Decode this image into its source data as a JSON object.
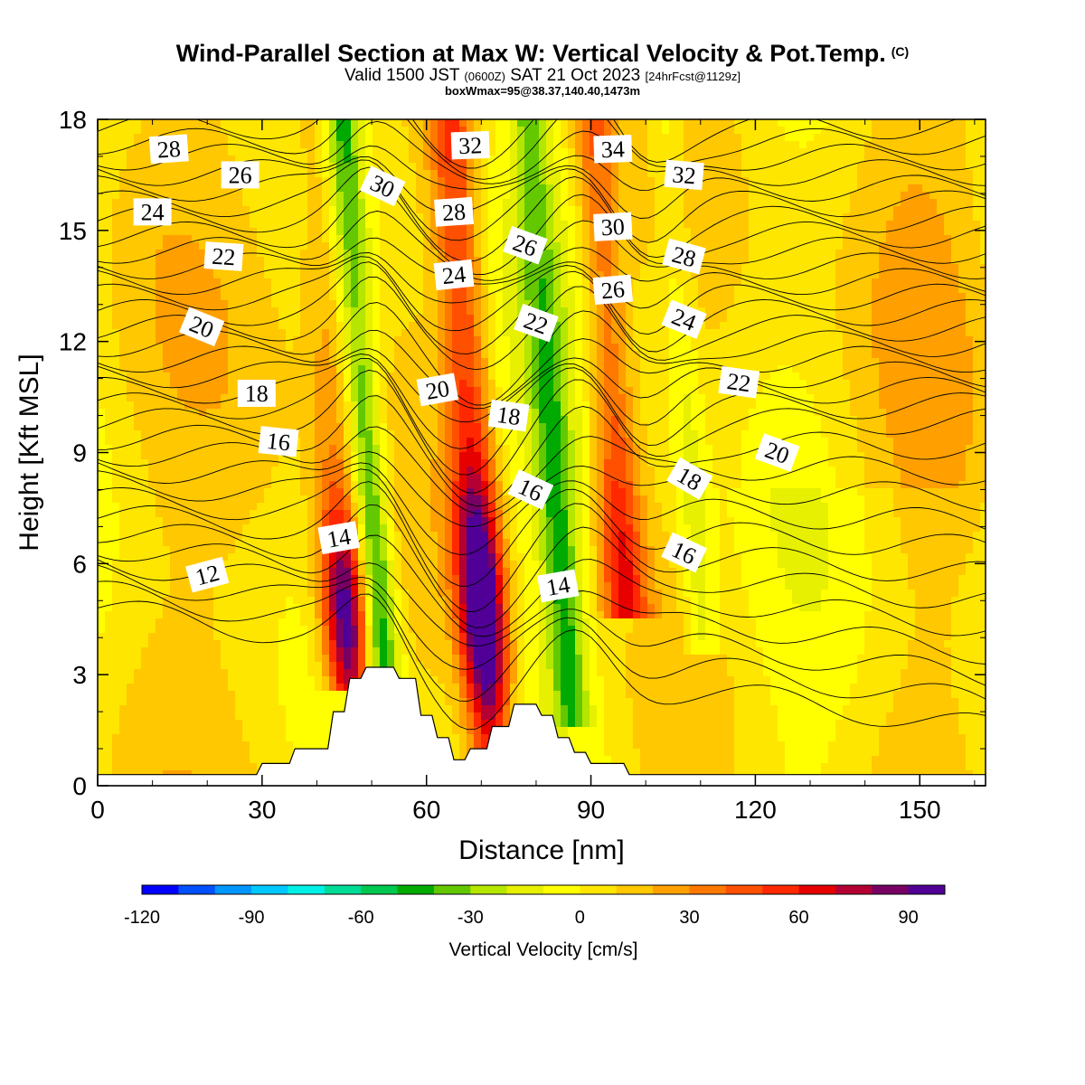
{
  "header": {
    "title": "Wind-Parallel Section at Max W: Vertical Velocity & Pot.Temp.",
    "title_mark": "(C)",
    "valid_prefix": "Valid 1500 JST",
    "valid_utc": "(0600Z)",
    "valid_date": "SAT 21 Oct 2023",
    "valid_fcst": "[24hrFcst@1129z]",
    "boxinfo": "boxWmax=95@38.37,140.40,1473m"
  },
  "chart_data": {
    "type": "heatmap",
    "xlabel": "Distance [nm]",
    "ylabel": "Height [Kft MSL]",
    "xlim": [
      0,
      162
    ],
    "ylim": [
      0,
      18
    ],
    "xticks": [
      0,
      30,
      60,
      90,
      120,
      150
    ],
    "yticks": [
      0,
      3,
      6,
      9,
      12,
      15,
      18
    ],
    "colorbar": {
      "title": "Vertical Velocity [cm/s]",
      "min": -120,
      "max": 100,
      "step": 10,
      "labels": [
        -120,
        -90,
        -60,
        -30,
        0,
        30,
        60,
        90
      ],
      "colors": [
        "#0000ff",
        "#0050ff",
        "#0096ff",
        "#00c8ff",
        "#00f0e6",
        "#00dc96",
        "#00c850",
        "#00aa00",
        "#64c800",
        "#b4e600",
        "#e6f000",
        "#ffff00",
        "#ffe600",
        "#ffc800",
        "#ffa000",
        "#ff7800",
        "#ff5000",
        "#ff2800",
        "#e60000",
        "#b40032",
        "#780064",
        "#500096"
      ]
    },
    "vertical_velocity_features": [
      {
        "kind": "updraft",
        "x": 46,
        "y_base": 3,
        "y_top": 10,
        "peak": 90
      },
      {
        "kind": "downdraft",
        "x": 52,
        "y_base": 2,
        "y_top": 18,
        "peak": -60
      },
      {
        "kind": "updraft",
        "x": 71,
        "y_base": 1,
        "y_top": 18,
        "peak": 100
      },
      {
        "kind": "downdraft",
        "x": 86,
        "y_base": 2,
        "y_top": 18,
        "peak": -40
      },
      {
        "kind": "updraft",
        "x": 97,
        "y_base": 5,
        "y_top": 18,
        "peak": 60
      },
      {
        "kind": "downdraft",
        "x": 111,
        "y_base": 4,
        "y_top": 18,
        "peak": -25
      }
    ],
    "terrain": {
      "x": [
        0,
        29,
        30,
        35,
        36,
        42,
        43,
        45,
        46,
        48,
        49,
        54,
        55,
        58,
        59,
        61,
        62,
        64,
        65,
        67,
        68,
        71,
        72,
        75,
        76,
        80,
        81,
        83,
        84,
        86,
        87,
        89,
        90,
        96,
        97,
        98,
        162
      ],
      "height_kft": [
        0.3,
        0.3,
        0.6,
        0.6,
        1.0,
        1.0,
        2.0,
        2.0,
        2.9,
        2.9,
        3.2,
        3.2,
        2.9,
        2.9,
        1.9,
        1.9,
        1.3,
        1.3,
        0.7,
        0.7,
        1.0,
        1.0,
        1.6,
        1.6,
        2.2,
        2.2,
        1.9,
        1.9,
        1.3,
        1.3,
        0.9,
        0.9,
        0.6,
        0.6,
        0.3,
        0.3,
        0.3
      ]
    },
    "theta_labels": [
      {
        "value": "28",
        "x": 13,
        "y": 17.2,
        "angle": -4
      },
      {
        "value": "26",
        "x": 26,
        "y": 16.5,
        "angle": 0
      },
      {
        "value": "24",
        "x": 10,
        "y": 15.5,
        "angle": 0
      },
      {
        "value": "22",
        "x": 23,
        "y": 14.3,
        "angle": 4
      },
      {
        "value": "20",
        "x": 19,
        "y": 12.4,
        "angle": 22
      },
      {
        "value": "18",
        "x": 29,
        "y": 10.6,
        "angle": 0
      },
      {
        "value": "16",
        "x": 33,
        "y": 9.3,
        "angle": 6
      },
      {
        "value": "14",
        "x": 44,
        "y": 6.7,
        "angle": -10
      },
      {
        "value": "12",
        "x": 20,
        "y": 5.7,
        "angle": -15
      },
      {
        "value": "30",
        "x": 52,
        "y": 16.2,
        "angle": 25
      },
      {
        "value": "32",
        "x": 68,
        "y": 17.3,
        "angle": -2
      },
      {
        "value": "28",
        "x": 65,
        "y": 15.5,
        "angle": -4
      },
      {
        "value": "24",
        "x": 65,
        "y": 13.8,
        "angle": -6
      },
      {
        "value": "26",
        "x": 78,
        "y": 14.6,
        "angle": 20
      },
      {
        "value": "22",
        "x": 80,
        "y": 12.5,
        "angle": 20
      },
      {
        "value": "20",
        "x": 62,
        "y": 10.7,
        "angle": -10
      },
      {
        "value": "18",
        "x": 75,
        "y": 10.0,
        "angle": 8
      },
      {
        "value": "16",
        "x": 79,
        "y": 8.0,
        "angle": 25
      },
      {
        "value": "14",
        "x": 84,
        "y": 5.4,
        "angle": -10
      },
      {
        "value": "34",
        "x": 94,
        "y": 17.2,
        "angle": -2
      },
      {
        "value": "30",
        "x": 94,
        "y": 15.1,
        "angle": -3
      },
      {
        "value": "26",
        "x": 94,
        "y": 13.4,
        "angle": -5
      },
      {
        "value": "32",
        "x": 107,
        "y": 16.5,
        "angle": 5
      },
      {
        "value": "28",
        "x": 107,
        "y": 14.3,
        "angle": 15
      },
      {
        "value": "24",
        "x": 107,
        "y": 12.6,
        "angle": 22
      },
      {
        "value": "22",
        "x": 117,
        "y": 10.9,
        "angle": 8
      },
      {
        "value": "20",
        "x": 124,
        "y": 9.0,
        "angle": 20
      },
      {
        "value": "18",
        "x": 108,
        "y": 8.3,
        "angle": 30
      },
      {
        "value": "16",
        "x": 107,
        "y": 6.3,
        "angle": 25
      }
    ]
  }
}
